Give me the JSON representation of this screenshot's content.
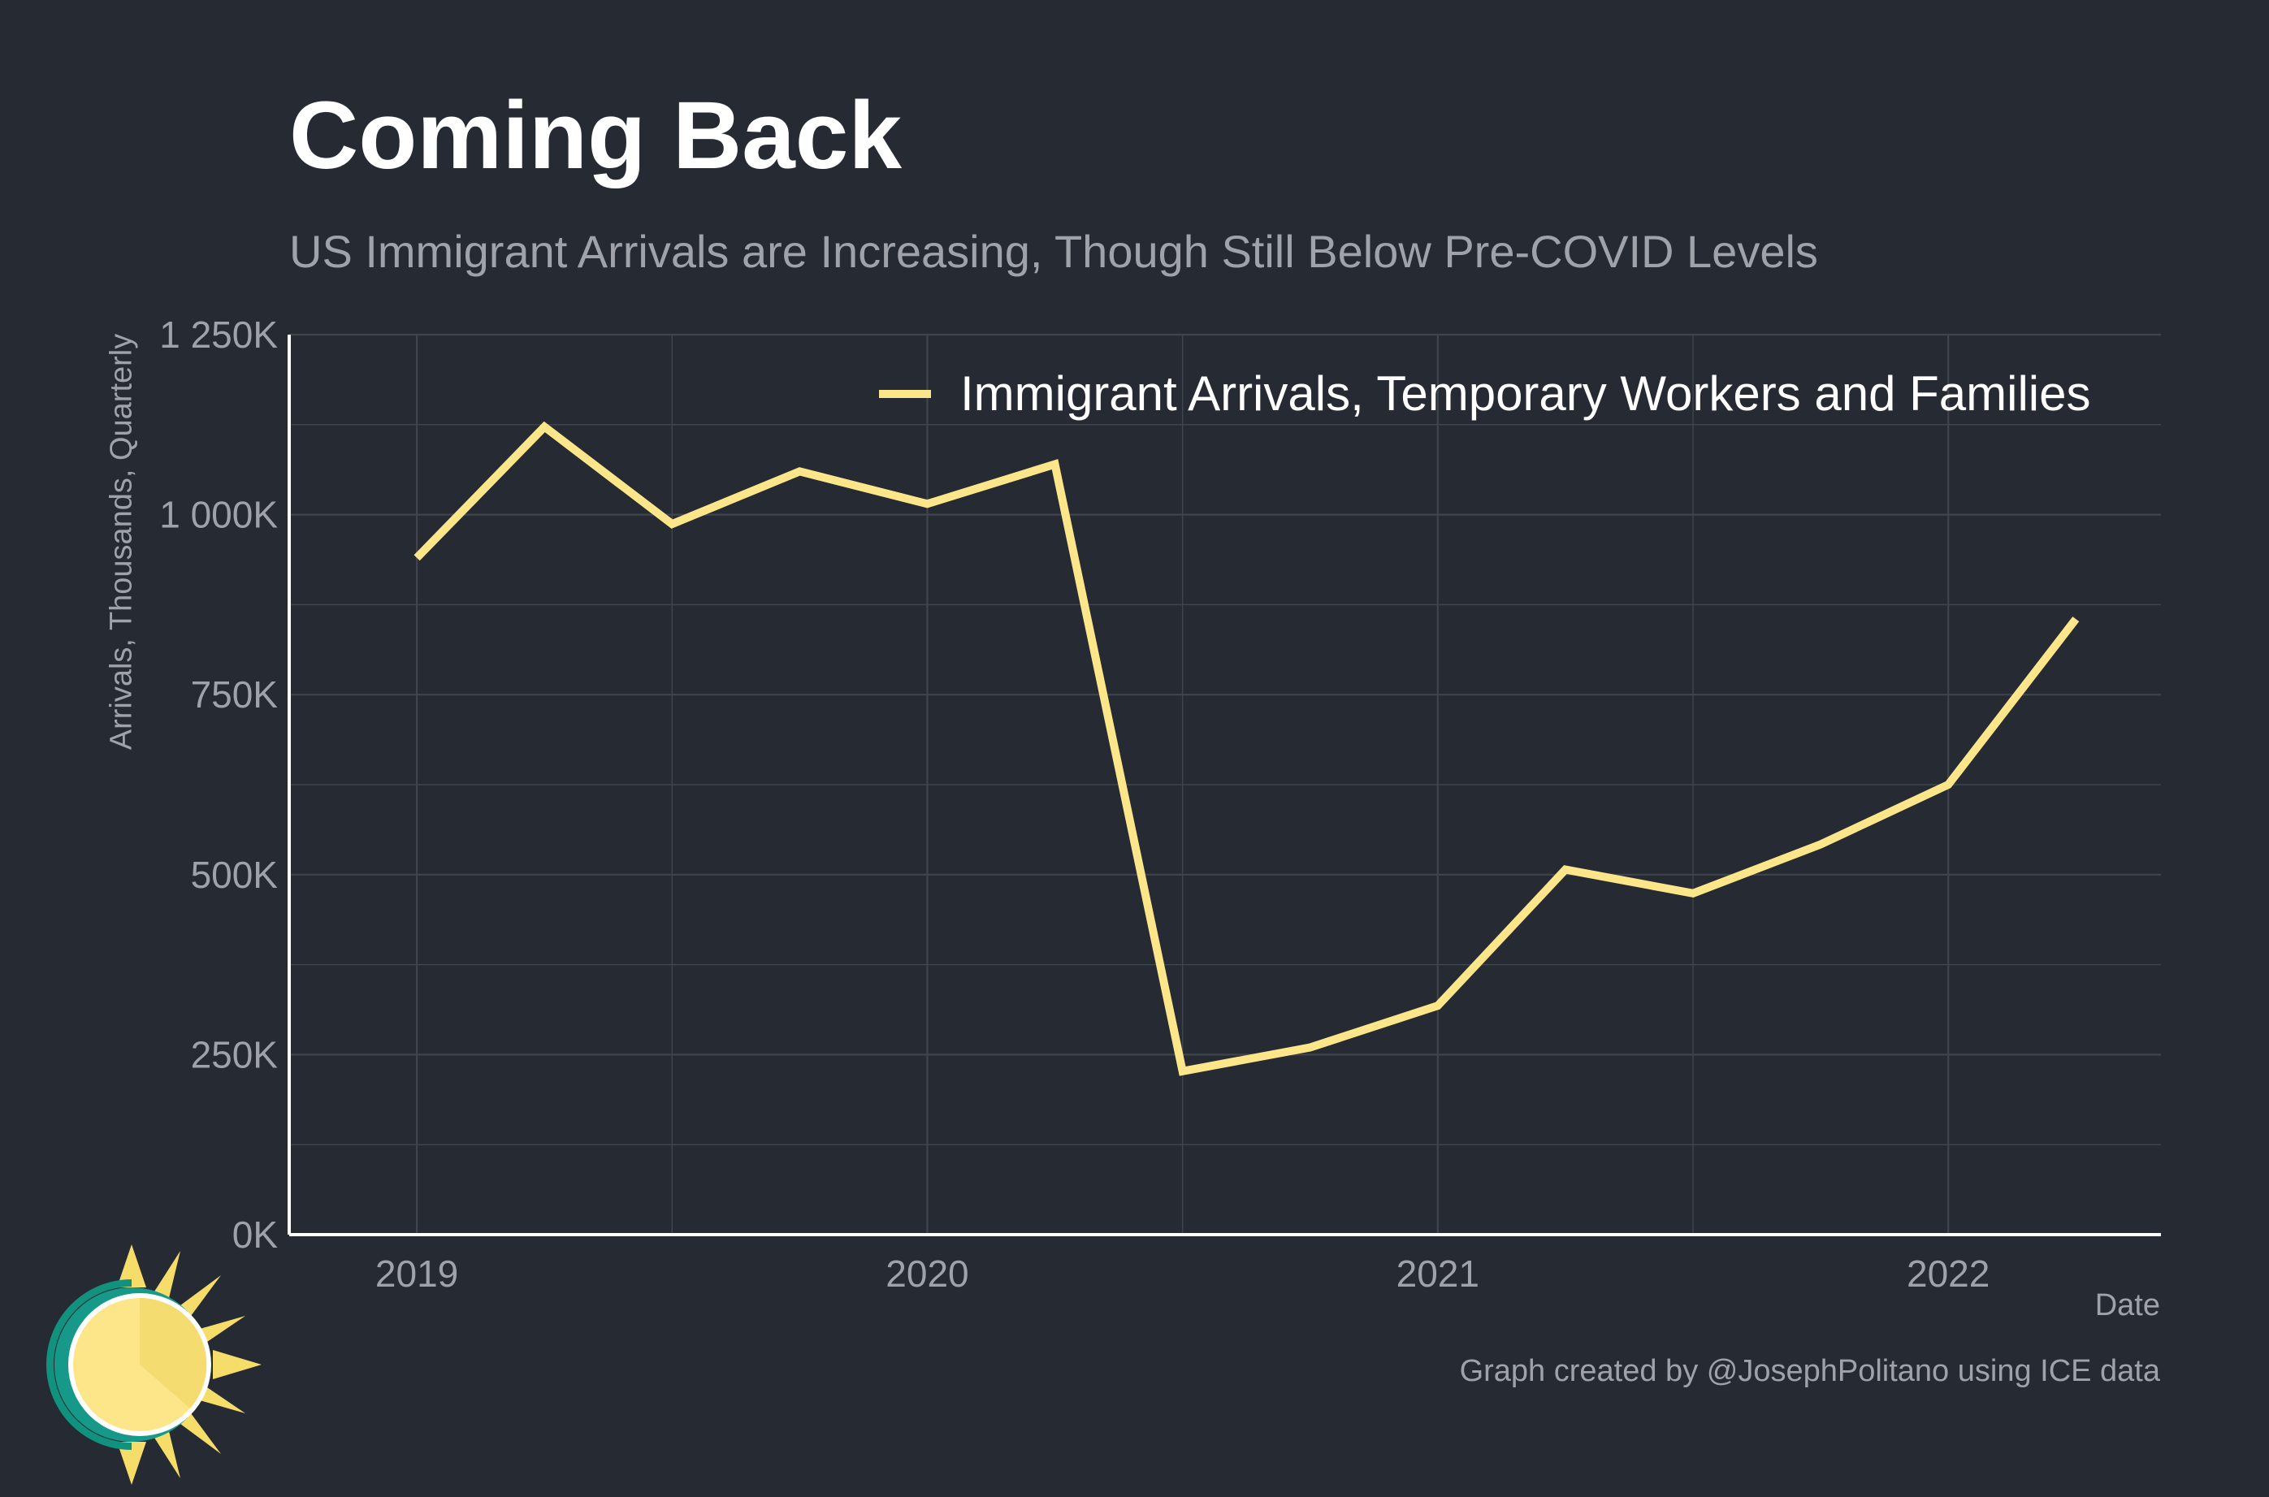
{
  "title": "Coming Back",
  "subtitle": "US Immigrant Arrivals are Increasing, Though Still Below Pre-COVID Levels",
  "caption": "Graph created by @JosephPolitano using ICE data",
  "colors": {
    "background": "#252a33",
    "line": "#fde68a",
    "grid": "#3f444d",
    "axis": "#ffffff",
    "muted_text": "#9fa2a8"
  },
  "chart_data": {
    "type": "line",
    "title": "Coming Back",
    "subtitle": "US Immigrant Arrivals are Increasing, Though Still Below Pre-COVID Levels",
    "xlabel": "Date",
    "ylabel": "Arrivals, Thousands, Quarterly",
    "x_ticks": [
      2019,
      2020,
      2021,
      2022
    ],
    "y_ticks": [
      0,
      250,
      500,
      750,
      1000,
      1250
    ],
    "y_tick_labels": [
      "0K",
      "250K",
      "500K",
      "750K",
      "1 000K",
      "1 250K"
    ],
    "ylim": [
      0,
      1250
    ],
    "xlim": [
      "2018-10",
      "2022-06"
    ],
    "grid": true,
    "legend_position": "top-right",
    "series": [
      {
        "name": "Immigrant Arrivals, Temporary Workers and Families",
        "color": "#fde68a",
        "x": [
          "2019-01",
          "2019-04",
          "2019-07",
          "2019-10",
          "2020-01",
          "2020-04",
          "2020-07",
          "2020-10",
          "2021-01",
          "2021-04",
          "2021-07",
          "2021-10",
          "2022-01",
          "2022-04"
        ],
        "values": [
          940,
          1122,
          987,
          1060,
          1015,
          1070,
          227,
          260,
          318,
          507,
          474,
          542,
          625,
          855
        ]
      }
    ]
  }
}
